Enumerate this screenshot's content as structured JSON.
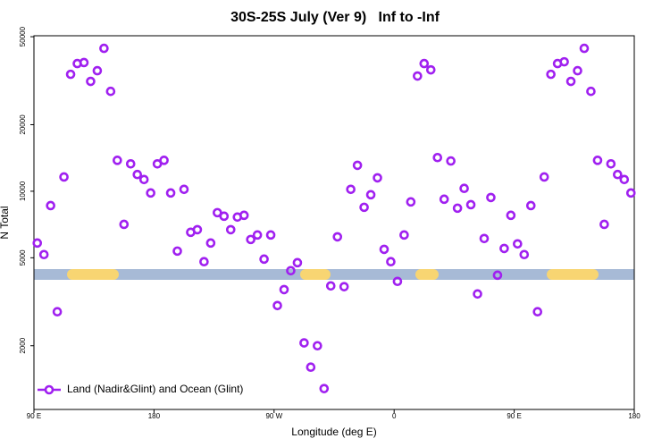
{
  "chart_data": {
    "type": "scatter",
    "title": "30S-25S July (Ver 9)   Inf to -Inf",
    "x_label": "Longitude (deg E)",
    "y_label": "N Total",
    "log_y": true,
    "legend": "bottom-left",
    "xlim": [
      90,
      540
    ],
    "xticks": [
      {
        "value": 90,
        "label": "90 E"
      },
      {
        "value": 180,
        "label": "180"
      },
      {
        "value": 270,
        "label": "90 W"
      },
      {
        "value": 360,
        "label": "0"
      },
      {
        "value": 450,
        "label": "90 E"
      },
      {
        "value": 540,
        "label": "180"
      }
    ],
    "ylim": [
      1030,
      50500
    ],
    "yticks": [
      2000,
      5000,
      10000,
      20000,
      50000
    ],
    "x": [
      92.5,
      97.5,
      102.5,
      107.5,
      112.5,
      117.5,
      122.5,
      127.5,
      132.5,
      137.5,
      142.5,
      147.5,
      152.5,
      157.5,
      162.5,
      167.5,
      172.5,
      177.5,
      182.5,
      187.5,
      192.5,
      197.5,
      202.5,
      207.5,
      212.5,
      217.5,
      222.5,
      227.5,
      232.5,
      237.5,
      242.5,
      247.5,
      252.5,
      257.5,
      262.5,
      267.5,
      272.5,
      277.5,
      282.5,
      287.5,
      292.5,
      297.5,
      302.5,
      307.5,
      312.5,
      317.5,
      322.5,
      327.5,
      332.5,
      337.5,
      342.5,
      347.5,
      352.5,
      357.5,
      362.5,
      367.5,
      372.5,
      377.5,
      382.5,
      387.5,
      392.5,
      397.5,
      402.5,
      407.5,
      412.5,
      417.5,
      422.5,
      427.5,
      432.5,
      437.5,
      442.5,
      447.5,
      452.5,
      457.5,
      462.5,
      467.5,
      472.5,
      477.5,
      482.5,
      487.5,
      492.5,
      497.5,
      502.5,
      507.5,
      512.5,
      517.5,
      522.5,
      527.5,
      532.5,
      537.5
    ],
    "series": [
      {
        "name": "Land (Nadir&Glint) and Ocean (Glint)",
        "color": "#a020f0",
        "values": [
          5830,
          5170,
          8610,
          2850,
          11600,
          33800,
          37800,
          38200,
          31400,
          35100,
          44300,
          28300,
          13800,
          7080,
          13300,
          11900,
          11300,
          9820,
          13300,
          13800,
          9820,
          5360,
          10200,
          6520,
          6700,
          4800,
          5830,
          8000,
          7710,
          6700,
          7640,
          7780,
          6050,
          6340,
          4930,
          6340,
          3040,
          3590,
          4370,
          4750,
          2060,
          1600,
          2000,
          1280,
          3730,
          6220,
          3700,
          10200,
          13100,
          8460,
          9640,
          11500,
          5460,
          4800,
          3910,
          6340,
          8950,
          33200,
          37800,
          35400,
          14200,
          9200,
          13700,
          8380,
          10300,
          8690,
          3430,
          6110,
          9370,
          4170,
          5510,
          7780,
          5780,
          5170,
          8610,
          2850,
          11600,
          33800,
          37800,
          38500,
          31400,
          35100,
          44300,
          28300,
          13800,
          7080,
          13300,
          11900,
          11300,
          9820
        ]
      }
    ]
  }
}
